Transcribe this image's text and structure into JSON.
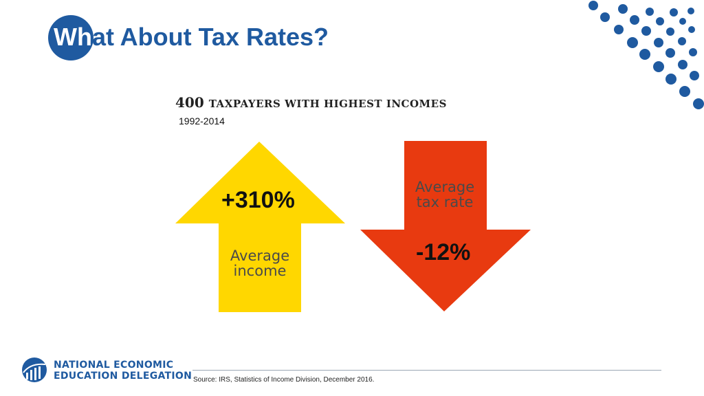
{
  "slide": {
    "title_part1": "Wh",
    "title_part2": "at About Tax Rates?"
  },
  "chart": {
    "headline_number": "400",
    "headline_text": "TAXPAYERS WITH HIGHEST INCOMES",
    "years": "1992-2014",
    "income": {
      "value": "+310%",
      "label_line1": "Average",
      "label_line2": "income",
      "color": "#ffd700"
    },
    "tax_rate": {
      "value": "-12%",
      "label_line1": "Average",
      "label_line2": "tax rate",
      "color": "#e83a10"
    }
  },
  "footer": {
    "org_line1": "NATIONAL ECONOMIC",
    "org_line2": "EDUCATION DELEGATION",
    "source": "Source: IRS, Statistics of Income Division, December 2016."
  },
  "colors": {
    "brand_blue": "#1f5aa0"
  }
}
